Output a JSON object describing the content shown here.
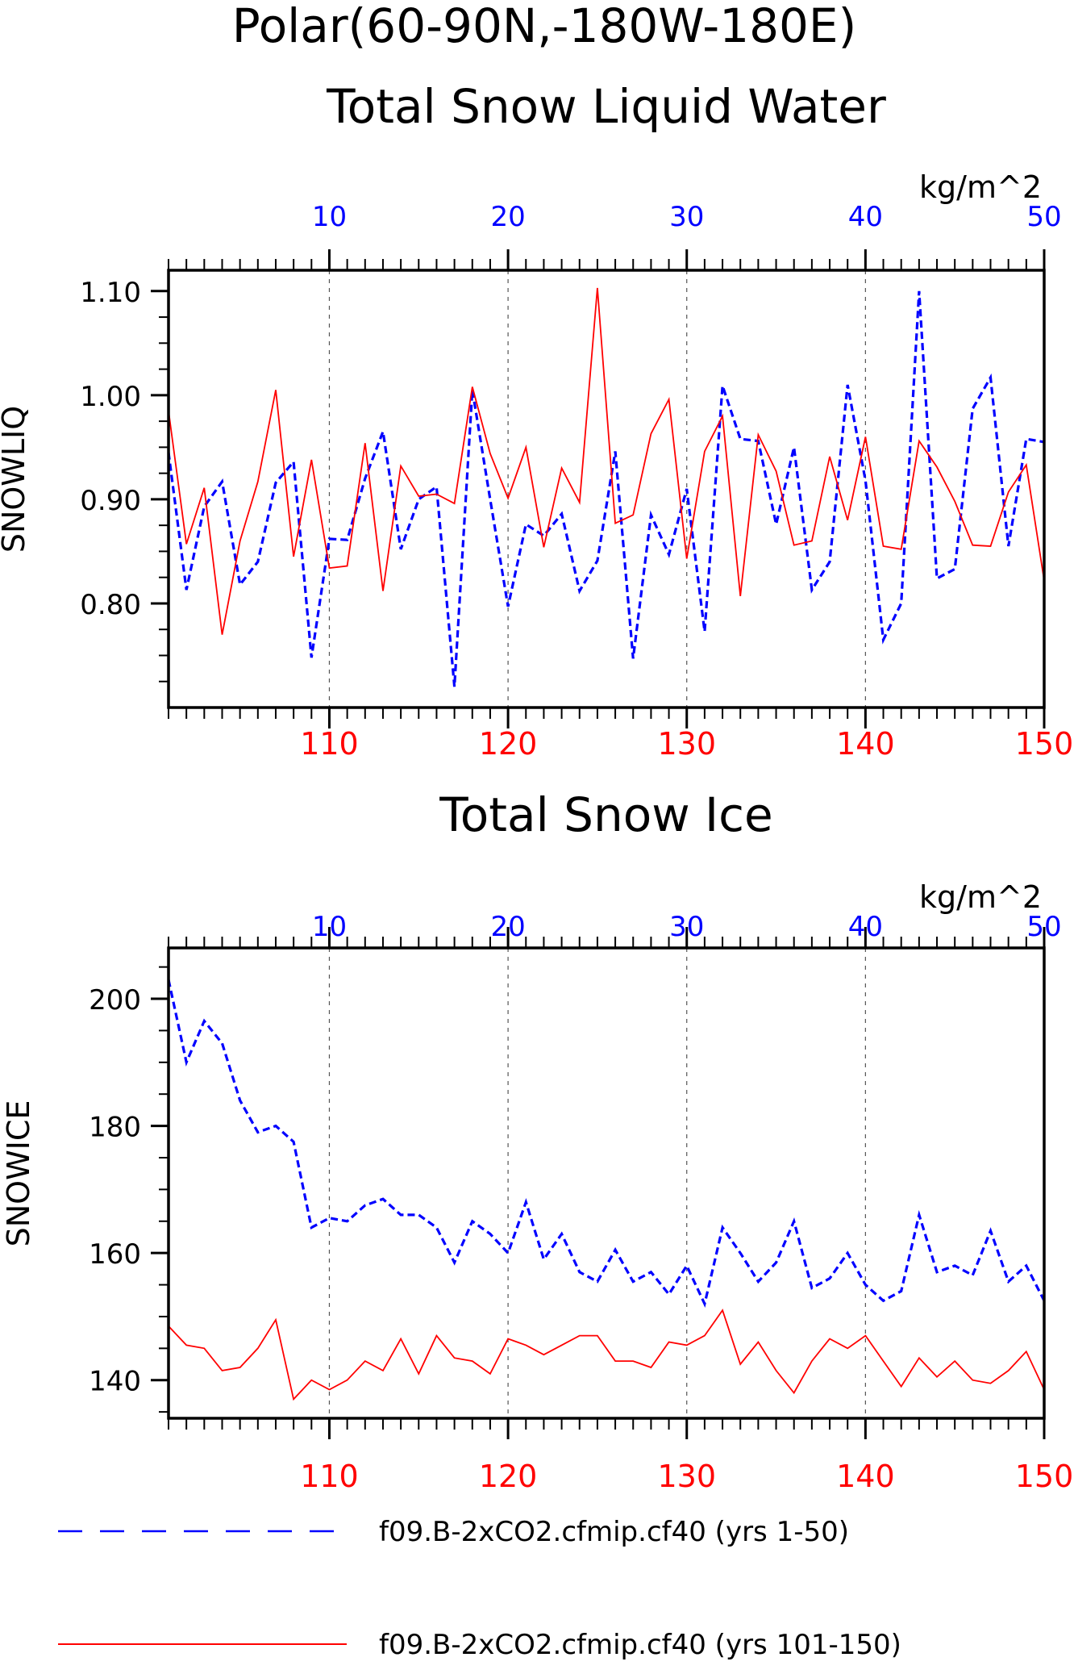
{
  "title_line1": "Polar(60-90N,-180W-180E)",
  "colors": {
    "blue": "#0000ff",
    "red": "#ff0000",
    "axis": "#000000",
    "grid": "#555555"
  },
  "chart_data": [
    {
      "type": "line",
      "title": "Total Snow Liquid Water",
      "units": "kg/m^2",
      "ylabel": "SNOWLIQ",
      "ylim": [
        0.7,
        1.12
      ],
      "yticks": [
        0.8,
        0.9,
        1.0,
        1.1
      ],
      "ytick_labels": [
        "0.80",
        "0.90",
        "1.00",
        "1.10"
      ],
      "top_axis": {
        "range": [
          1,
          50
        ],
        "ticks": [
          10,
          20,
          30,
          40,
          50
        ],
        "color": "#0000ff"
      },
      "bottom_axis": {
        "range": [
          101,
          150
        ],
        "ticks": [
          110,
          120,
          130,
          140,
          150
        ],
        "color": "#ff0000"
      },
      "grid": "vertical dashed at labeled ticks",
      "series": [
        {
          "name": "f09.B-2xCO2.cfmip.cf40 (yrs 1-50)",
          "style": "dashed",
          "color": "#0000ff",
          "x": [
            1,
            2,
            3,
            4,
            5,
            6,
            7,
            8,
            9,
            10,
            11,
            12,
            13,
            14,
            15,
            16,
            17,
            18,
            19,
            20,
            21,
            22,
            23,
            24,
            25,
            26,
            27,
            28,
            29,
            30,
            31,
            32,
            33,
            34,
            35,
            36,
            37,
            38,
            39,
            40,
            41,
            42,
            43,
            44,
            45,
            46,
            47,
            48,
            49,
            50
          ],
          "values": [
            0.945,
            0.813,
            0.893,
            0.917,
            0.818,
            0.84,
            0.916,
            0.936,
            0.748,
            0.862,
            0.861,
            0.92,
            0.965,
            0.852,
            0.9,
            0.912,
            0.72,
            1.005,
            0.9,
            0.797,
            0.876,
            0.865,
            0.886,
            0.812,
            0.841,
            0.946,
            0.747,
            0.885,
            0.847,
            0.91,
            0.773,
            1.009,
            0.958,
            0.956,
            0.876,
            0.95,
            0.813,
            0.84,
            1.01,
            0.918,
            0.765,
            0.8,
            1.1,
            0.824,
            0.833,
            0.987,
            1.017,
            0.855,
            0.958,
            0.955
          ]
        },
        {
          "name": "f09.B-2xCO2.cfmip.cf40 (yrs 101-150)",
          "style": "solid",
          "color": "#ff0000",
          "x": [
            101,
            102,
            103,
            104,
            105,
            106,
            107,
            108,
            109,
            110,
            111,
            112,
            113,
            114,
            115,
            116,
            117,
            118,
            119,
            120,
            121,
            122,
            123,
            124,
            125,
            126,
            127,
            128,
            129,
            130,
            131,
            132,
            133,
            134,
            135,
            136,
            137,
            138,
            139,
            140,
            141,
            142,
            143,
            144,
            145,
            146,
            147,
            148,
            149,
            150
          ],
          "values": [
            0.985,
            0.857,
            0.911,
            0.77,
            0.86,
            0.917,
            1.005,
            0.845,
            0.938,
            0.834,
            0.836,
            0.954,
            0.812,
            0.932,
            0.903,
            0.905,
            0.896,
            1.008,
            0.944,
            0.901,
            0.95,
            0.854,
            0.93,
            0.897,
            1.103,
            0.877,
            0.885,
            0.963,
            0.996,
            0.843,
            0.946,
            0.98,
            0.807,
            0.962,
            0.927,
            0.856,
            0.86,
            0.941,
            0.88,
            0.96,
            0.855,
            0.852,
            0.956,
            0.931,
            0.898,
            0.856,
            0.855,
            0.907,
            0.933,
            0.822
          ]
        }
      ]
    },
    {
      "type": "line",
      "title": "Total Snow Ice",
      "units": "kg/m^2",
      "ylabel": "SNOWICE",
      "ylim": [
        134,
        208
      ],
      "yticks": [
        140,
        160,
        180,
        200
      ],
      "ytick_labels": [
        "140",
        "160",
        "180",
        "200"
      ],
      "top_axis": {
        "range": [
          1,
          50
        ],
        "ticks": [
          10,
          20,
          30,
          40,
          50
        ],
        "color": "#0000ff"
      },
      "bottom_axis": {
        "range": [
          101,
          150
        ],
        "ticks": [
          110,
          120,
          130,
          140,
          150
        ],
        "color": "#ff0000"
      },
      "grid": "vertical dashed at labeled ticks",
      "series": [
        {
          "name": "f09.B-2xCO2.cfmip.cf40 (yrs 1-50)",
          "style": "dashed",
          "color": "#0000ff",
          "x": [
            1,
            2,
            3,
            4,
            5,
            6,
            7,
            8,
            9,
            10,
            11,
            12,
            13,
            14,
            15,
            16,
            17,
            18,
            19,
            20,
            21,
            22,
            23,
            24,
            25,
            26,
            27,
            28,
            29,
            30,
            31,
            32,
            33,
            34,
            35,
            36,
            37,
            38,
            39,
            40,
            41,
            42,
            43,
            44,
            45,
            46,
            47,
            48,
            49,
            50
          ],
          "values": [
            203,
            190,
            196.5,
            193,
            184,
            179,
            180,
            177.5,
            164,
            165.5,
            165,
            167.5,
            168.5,
            166,
            166,
            164,
            158.5,
            165,
            163,
            160,
            168,
            159,
            163,
            157,
            155.5,
            160.5,
            155.5,
            157,
            153.5,
            158,
            152,
            164,
            160,
            155.5,
            158.5,
            165,
            154.5,
            156,
            160,
            155,
            152.5,
            154,
            166,
            157,
            158,
            156.5,
            163.5,
            155.5,
            158,
            152.5
          ]
        },
        {
          "name": "f09.B-2xCO2.cfmip.cf40 (yrs 101-150)",
          "style": "solid",
          "color": "#ff0000",
          "x": [
            101,
            102,
            103,
            104,
            105,
            106,
            107,
            108,
            109,
            110,
            111,
            112,
            113,
            114,
            115,
            116,
            117,
            118,
            119,
            120,
            121,
            122,
            123,
            124,
            125,
            126,
            127,
            128,
            129,
            130,
            131,
            132,
            133,
            134,
            135,
            136,
            137,
            138,
            139,
            140,
            141,
            142,
            143,
            144,
            145,
            146,
            147,
            148,
            149,
            150
          ],
          "values": [
            148.5,
            145.5,
            145,
            141.5,
            142,
            145,
            149.5,
            137,
            140,
            138.5,
            140,
            143,
            141.5,
            146.5,
            141,
            147,
            143.5,
            143,
            141,
            146.5,
            145.5,
            144,
            145.5,
            147,
            147,
            143,
            143,
            142,
            146,
            145.5,
            147,
            151,
            142.5,
            146,
            141.5,
            138,
            143,
            146.5,
            145,
            147,
            143,
            139,
            143.5,
            140.5,
            143,
            140,
            139.5,
            141.5,
            144.5,
            138.5
          ]
        }
      ]
    }
  ],
  "legend": [
    {
      "label": "f09.B-2xCO2.cfmip.cf40 (yrs 1-50)",
      "style": "dashed",
      "color": "#0000ff"
    },
    {
      "label": "f09.B-2xCO2.cfmip.cf40 (yrs 101-150)",
      "style": "solid",
      "color": "#ff0000"
    }
  ]
}
